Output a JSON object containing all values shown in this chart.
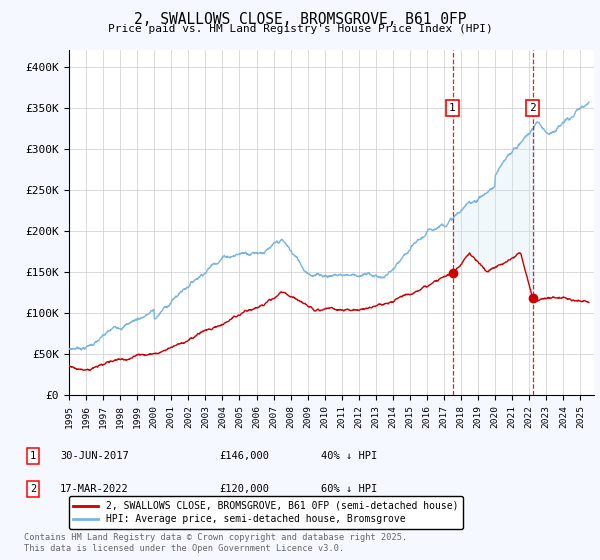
{
  "title": "2, SWALLOWS CLOSE, BROMSGROVE, B61 0FP",
  "subtitle": "Price paid vs. HM Land Registry's House Price Index (HPI)",
  "hpi_color": "#7ab5e0",
  "price_color": "#cc0000",
  "vline_color": "#cc0000",
  "shade_color": "#d0e8f8",
  "background_color": "#f5f9ff",
  "plot_bg": "#ffffff",
  "ylim": [
    0,
    420000
  ],
  "xlim_start": 1995.0,
  "xlim_end": 2025.8,
  "yticks": [
    0,
    50000,
    100000,
    150000,
    200000,
    250000,
    300000,
    350000,
    400000
  ],
  "ytick_labels": [
    "£0",
    "£50K",
    "£100K",
    "£150K",
    "£200K",
    "£250K",
    "£300K",
    "£350K",
    "£400K"
  ],
  "purchase1_x": 2017.5,
  "purchase1_y": 146000,
  "purchase1_label": "30-JUN-2017",
  "purchase1_price": "£146,000",
  "purchase1_hpi": "40% ↓ HPI",
  "purchase2_x": 2022.2,
  "purchase2_y": 120000,
  "purchase2_label": "17-MAR-2022",
  "purchase2_price": "£120,000",
  "purchase2_hpi": "60% ↓ HPI",
  "legend_entry1": "2, SWALLOWS CLOSE, BROMSGROVE, B61 0FP (semi-detached house)",
  "legend_entry2": "HPI: Average price, semi-detached house, Bromsgrove",
  "footnote": "Contains HM Land Registry data © Crown copyright and database right 2025.\nThis data is licensed under the Open Government Licence v3.0.",
  "marker1_y": 350000,
  "marker2_y": 350000
}
